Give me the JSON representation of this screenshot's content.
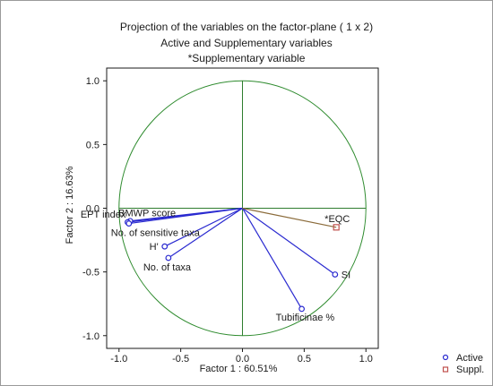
{
  "chart_data": {
    "type": "scatter",
    "title": "Projection of the variables on the factor-plane ( 1 x  2)",
    "subtitle_lines": [
      "Active and Supplementary variables",
      "*Supplementary variable"
    ],
    "xlabel": "Factor 1 : 60.51%",
    "ylabel": "Factor 2 : 16.63%",
    "xlim": [
      -1.1,
      1.1
    ],
    "ylim": [
      -1.1,
      1.1
    ],
    "x_ticks": [
      "-1.0",
      "-0.5",
      "0.0",
      "0.5",
      "1.0"
    ],
    "y_ticks": [
      "1.0",
      "0.5",
      "0.0",
      "-0.5",
      "-1.0"
    ],
    "unit_circle": true,
    "series": [
      {
        "name": "Active",
        "color": "#2a2ad0",
        "marker": "circle",
        "points": [
          {
            "label": "BMWP score",
            "x": -0.91,
            "y": -0.1
          },
          {
            "label": "EPT index",
            "x": -0.93,
            "y": -0.11
          },
          {
            "label": "No. of sensitive taxa",
            "x": -0.92,
            "y": -0.12
          },
          {
            "label": "H'",
            "x": -0.63,
            "y": -0.3
          },
          {
            "label": "No. of taxa",
            "x": -0.6,
            "y": -0.39
          },
          {
            "label": "SI",
            "x": 0.75,
            "y": -0.52
          },
          {
            "label": "Tubificinae %",
            "x": 0.48,
            "y": -0.79
          }
        ]
      },
      {
        "name": "Suppl.",
        "color": "#c0504d",
        "marker": "square",
        "points": [
          {
            "label": "*EQC",
            "x": 0.76,
            "y": -0.15
          }
        ]
      }
    ],
    "colors": {
      "circle": "#2e8b2e",
      "axes_lines": "#2e7d2e",
      "suppl_line": "#8b6b3a"
    }
  }
}
